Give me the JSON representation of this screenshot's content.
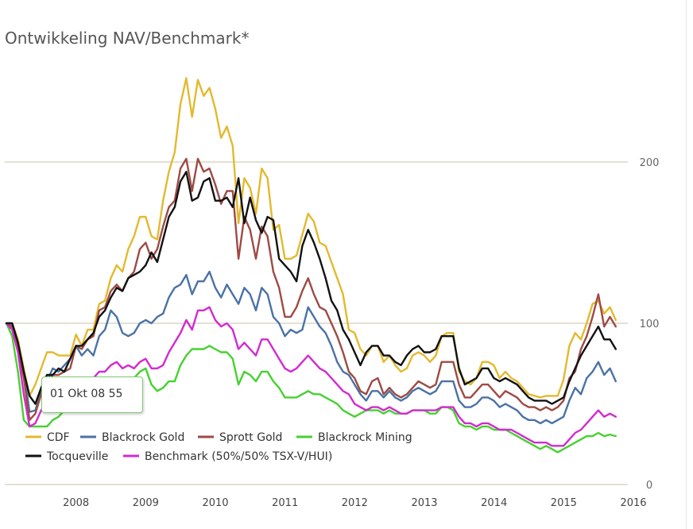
{
  "title": "Ontwikkeling NAV/Benchmark*",
  "tooltip": "01 Okt 08 55",
  "chart_data": {
    "type": "line",
    "title": "Ontwikkeling NAV/Benchmark*",
    "xlabel": "",
    "ylabel": "",
    "ylim": [
      0,
      250
    ],
    "yticks": [
      "0",
      "100",
      "200"
    ],
    "xticks": [
      "2008",
      "2009",
      "2010",
      "2011",
      "2012",
      "2013",
      "2014",
      "2015",
      "2016"
    ],
    "xrange": [
      2007.5,
      2016.42
    ],
    "grid": true,
    "legend_position": "bottom-left",
    "x_start": 2007.5,
    "x_step": 0.0833,
    "series": [
      {
        "name": "CDF",
        "color": "#e3b92e",
        "values": [
          100,
          100,
          90,
          72,
          55,
          62,
          72,
          82,
          82,
          80,
          80,
          80,
          93,
          86,
          96,
          96,
          112,
          114,
          128,
          136,
          132,
          146,
          154,
          166,
          166,
          154,
          152,
          176,
          194,
          206,
          236,
          252,
          228,
          251,
          241,
          246,
          233,
          215,
          222,
          210,
          162,
          190,
          184,
          168,
          196,
          190,
          158,
          161,
          140,
          140,
          142,
          155,
          168,
          163,
          150,
          148,
          138,
          128,
          118,
          96,
          94,
          84,
          80,
          86,
          86,
          76,
          80,
          74,
          70,
          72,
          80,
          82,
          80,
          76,
          80,
          92,
          94,
          94,
          70,
          64,
          62,
          66,
          76,
          76,
          74,
          66,
          70,
          66,
          64,
          60,
          56,
          55,
          54,
          55,
          55,
          55,
          65,
          86,
          94,
          90,
          100,
          112,
          114,
          106,
          110,
          102
        ]
      },
      {
        "name": "Blackrock Gold",
        "color": "#4a72a5",
        "values": [
          100,
          100,
          88,
          70,
          45,
          46,
          58,
          64,
          72,
          70,
          74,
          78,
          86,
          80,
          84,
          80,
          92,
          96,
          108,
          104,
          94,
          92,
          94,
          100,
          102,
          100,
          104,
          106,
          116,
          122,
          124,
          130,
          118,
          126,
          126,
          132,
          122,
          116,
          124,
          118,
          112,
          122,
          118,
          108,
          122,
          118,
          104,
          100,
          92,
          96,
          94,
          96,
          110,
          104,
          98,
          94,
          86,
          76,
          70,
          68,
          62,
          56,
          52,
          58,
          58,
          54,
          58,
          54,
          52,
          54,
          58,
          60,
          58,
          56,
          58,
          64,
          64,
          64,
          52,
          48,
          48,
          50,
          54,
          54,
          52,
          48,
          50,
          48,
          46,
          42,
          40,
          40,
          38,
          40,
          38,
          40,
          42,
          52,
          60,
          56,
          66,
          70,
          76,
          68,
          72,
          64
        ]
      },
      {
        "name": "Sprott Gold",
        "color": "#9e4a44",
        "values": [
          100,
          98,
          84,
          66,
          40,
          44,
          56,
          62,
          68,
          68,
          70,
          72,
          86,
          84,
          90,
          92,
          108,
          110,
          120,
          124,
          120,
          128,
          132,
          146,
          150,
          140,
          146,
          160,
          172,
          176,
          196,
          202,
          182,
          202,
          194,
          196,
          186,
          174,
          182,
          182,
          140,
          166,
          158,
          140,
          160,
          154,
          132,
          122,
          104,
          104,
          110,
          120,
          128,
          118,
          110,
          108,
          100,
          92,
          82,
          70,
          66,
          58,
          56,
          64,
          66,
          56,
          60,
          56,
          54,
          56,
          60,
          64,
          62,
          60,
          62,
          76,
          76,
          76,
          62,
          54,
          54,
          58,
          62,
          62,
          58,
          54,
          58,
          56,
          54,
          50,
          48,
          48,
          46,
          48,
          46,
          48,
          52,
          66,
          70,
          84,
          92,
          104,
          118,
          98,
          104,
          98
        ]
      },
      {
        "name": "Blackrock Mining",
        "color": "#46d12f",
        "values": [
          100,
          92,
          70,
          40,
          36,
          36,
          36,
          36,
          40,
          42,
          46,
          50,
          54,
          54,
          58,
          60,
          62,
          60,
          66,
          66,
          64,
          66,
          66,
          70,
          72,
          62,
          58,
          60,
          64,
          64,
          74,
          80,
          84,
          84,
          84,
          86,
          84,
          82,
          82,
          78,
          62,
          70,
          68,
          64,
          70,
          70,
          64,
          60,
          54,
          54,
          54,
          56,
          58,
          56,
          56,
          54,
          52,
          50,
          46,
          44,
          42,
          44,
          46,
          46,
          46,
          44,
          46,
          44,
          44,
          44,
          46,
          46,
          46,
          44,
          44,
          48,
          48,
          46,
          38,
          36,
          36,
          34,
          36,
          36,
          34,
          34,
          34,
          32,
          30,
          28,
          26,
          24,
          22,
          24,
          22,
          20,
          22,
          24,
          26,
          28,
          30,
          30,
          32,
          30,
          31,
          30
        ]
      },
      {
        "name": "Tocqueville",
        "color": "#111111",
        "values": [
          100,
          100,
          88,
          70,
          55,
          50,
          60,
          68,
          68,
          72,
          70,
          78,
          86,
          86,
          90,
          94,
          104,
          108,
          116,
          122,
          120,
          128,
          130,
          132,
          136,
          144,
          138,
          152,
          166,
          172,
          188,
          194,
          176,
          178,
          188,
          190,
          176,
          176,
          178,
          172,
          190,
          162,
          178,
          164,
          156,
          166,
          164,
          140,
          136,
          132,
          126,
          148,
          158,
          150,
          140,
          128,
          114,
          108,
          96,
          90,
          82,
          74,
          82,
          86,
          86,
          80,
          80,
          76,
          74,
          80,
          84,
          86,
          82,
          82,
          84,
          92,
          92,
          92,
          72,
          62,
          64,
          66,
          72,
          72,
          66,
          64,
          66,
          64,
          62,
          58,
          54,
          52,
          52,
          52,
          50,
          52,
          54,
          64,
          72,
          80,
          86,
          92,
          98,
          90,
          90,
          84
        ]
      },
      {
        "name": "Benchmark (50%/50% TSX-V/HUI)",
        "color": "#d22ad0",
        "values": [
          100,
          96,
          82,
          56,
          36,
          38,
          46,
          52,
          56,
          56,
          58,
          60,
          64,
          62,
          64,
          66,
          70,
          70,
          74,
          76,
          72,
          74,
          72,
          76,
          78,
          72,
          72,
          74,
          82,
          88,
          94,
          102,
          96,
          108,
          108,
          110,
          102,
          98,
          100,
          96,
          84,
          88,
          84,
          80,
          90,
          90,
          84,
          78,
          72,
          70,
          72,
          76,
          80,
          76,
          72,
          70,
          66,
          62,
          58,
          56,
          50,
          48,
          46,
          48,
          48,
          46,
          48,
          46,
          44,
          44,
          46,
          46,
          46,
          46,
          46,
          48,
          48,
          48,
          42,
          38,
          38,
          36,
          38,
          38,
          36,
          34,
          34,
          34,
          32,
          30,
          28,
          26,
          26,
          26,
          24,
          24,
          24,
          28,
          32,
          34,
          38,
          42,
          46,
          42,
          44,
          42
        ]
      }
    ]
  }
}
